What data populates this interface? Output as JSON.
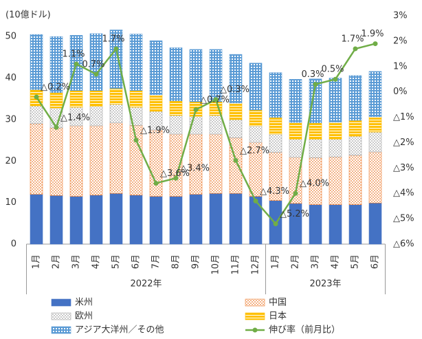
{
  "chart_data": {
    "type": "bar",
    "stacked": true,
    "y_label": "(10億ドル)",
    "groups": [
      {
        "name": "2022年",
        "categories": [
          "1月",
          "2月",
          "3月",
          "4月",
          "5月",
          "6月",
          "7月",
          "8月",
          "9月",
          "10月",
          "11月",
          "12月"
        ]
      },
      {
        "name": "2023年",
        "categories": [
          "1月",
          "2月",
          "3月",
          "4月",
          "5月",
          "6月"
        ]
      }
    ],
    "ylim": [
      0,
      55
    ],
    "yticks": [
      0,
      10,
      20,
      30,
      40,
      50
    ],
    "y2lim": [
      -6,
      3
    ],
    "y2ticks": [
      {
        "value": 3,
        "label": "3%"
      },
      {
        "value": 2,
        "label": "2%"
      },
      {
        "value": 1,
        "label": "1%"
      },
      {
        "value": 0,
        "label": "0%"
      },
      {
        "value": -1,
        "label": "△1%"
      },
      {
        "value": -2,
        "label": "△2%"
      },
      {
        "value": -3,
        "label": "△3%"
      },
      {
        "value": -4,
        "label": "△4%"
      },
      {
        "value": -5,
        "label": "△5%"
      },
      {
        "value": -6,
        "label": "△6%"
      }
    ],
    "series": [
      {
        "name": "米州",
        "color": "#4472c4",
        "pattern": "solid",
        "values": [
          12,
          11.7,
          11.5,
          11.8,
          12.2,
          11.8,
          11.5,
          11.5,
          12,
          12.2,
          12.2,
          11.5,
          10.5,
          9.8,
          9.5,
          9.5,
          9.5,
          9.9
        ]
      },
      {
        "name": "中国",
        "color": "#ed7d31",
        "pattern": "dots",
        "values": [
          17,
          16.3,
          17,
          16.7,
          17,
          16.8,
          16,
          15,
          14.5,
          14.3,
          13.4,
          13,
          11.6,
          11.1,
          11.3,
          11.5,
          11.9,
          12.3
        ]
      },
      {
        "name": "欧州",
        "color": "#a5a5a5",
        "pattern": "dots",
        "values": [
          4.3,
          4.8,
          4.5,
          4.7,
          4.5,
          4.4,
          4.5,
          4.5,
          4.3,
          4.5,
          4.4,
          4,
          4.4,
          4.4,
          4.5,
          4.3,
          4.6,
          4.8
        ]
      },
      {
        "name": "日本",
        "color": "#ffc000",
        "pattern": "hlines",
        "values": [
          3.9,
          3.7,
          4,
          3.8,
          3.8,
          4,
          4,
          3.5,
          3.5,
          3.3,
          4,
          3.8,
          4,
          4,
          3.9,
          4.1,
          3.8,
          3.7
        ]
      },
      {
        "name": "アジア大洋州／その他",
        "color": "#5b9bd5",
        "pattern": "grid",
        "values": [
          13.3,
          13.5,
          13.3,
          13.7,
          14.1,
          13.6,
          13,
          12.8,
          12.6,
          12.6,
          11.7,
          11.3,
          10.8,
          10.4,
          10.6,
          10.6,
          10.8,
          10.9
        ]
      },
      {
        "name": "伸び率（前月比）",
        "color": "#70ad47",
        "type": "line",
        "axis": "y2",
        "values": [
          -0.2,
          -1.4,
          1.1,
          0.7,
          1.7,
          -1.9,
          -3.6,
          -3.4,
          -0.7,
          -0.3,
          -2.7,
          -4.3,
          -5.2,
          -4.0,
          0.3,
          0.5,
          1.7,
          1.9
        ],
        "value_labels": [
          "△0.2%",
          "△1.4%",
          "1.1%",
          "0.7%",
          "1.7%",
          "△1.9%",
          "△3.6%",
          "△3.4%",
          "△0.7%",
          "△0.3%",
          "△2.7%",
          "△4.3%",
          "△5.2%",
          "△4.0%",
          "0.3%",
          "0.5%",
          "1.7%",
          "1.9%"
        ]
      }
    ]
  }
}
